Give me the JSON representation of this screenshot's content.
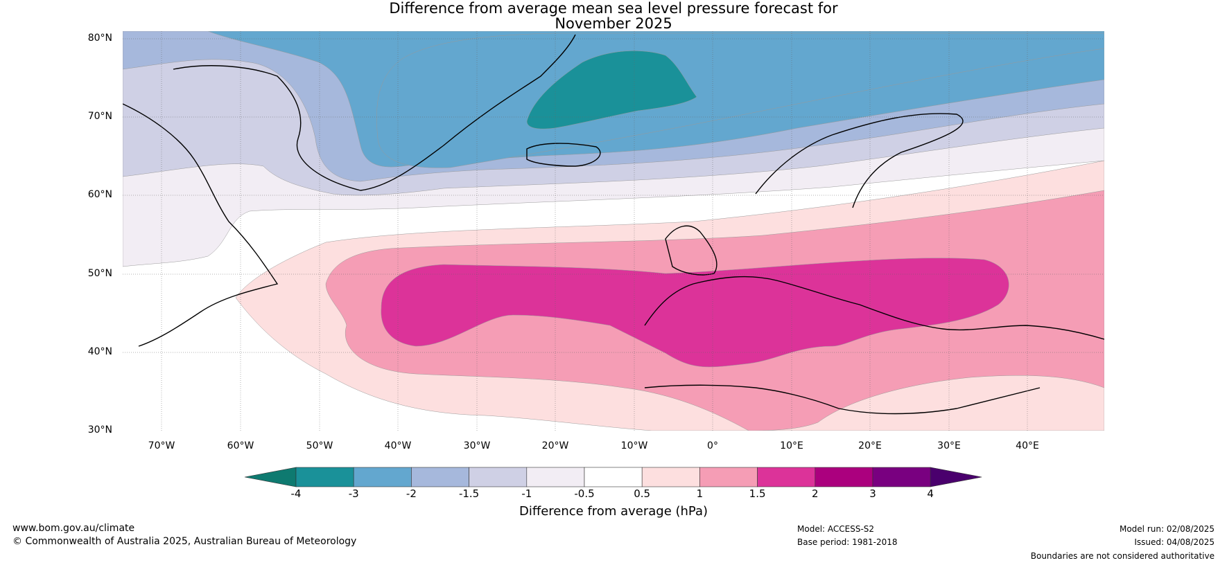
{
  "title": {
    "line1": "Difference from average mean sea level pressure forecast for",
    "line2": "November 2025"
  },
  "axes": {
    "latitude_labels": [
      "80°N",
      "70°N",
      "60°N",
      "50°N",
      "40°N",
      "30°N"
    ],
    "longitude_labels": [
      "70°W",
      "60°W",
      "50°W",
      "40°W",
      "30°W",
      "20°W",
      "10°W",
      "0°",
      "10°E",
      "20°E",
      "30°E",
      "40°E"
    ]
  },
  "colorbar": {
    "label": "Difference from average (hPa)",
    "ticks": [
      "-4",
      "-3",
      "-2",
      "-1.5",
      "-1",
      "-0.5",
      "0.5",
      "1",
      "1.5",
      "2",
      "3",
      "4"
    ],
    "colors": [
      "#0e7a70",
      "#1a9199",
      "#63a7cf",
      "#a6b8dc",
      "#cfd0e5",
      "#f2edf4",
      "#ffffff",
      "#fddfdf",
      "#f59db5",
      "#dc3399",
      "#ab007e",
      "#790080",
      "#4a006d"
    ]
  },
  "map_colors": {
    "gt_1_5": "#dc3399",
    "gt_1": "#f59db5",
    "gt_0_5": "#fddfdf",
    "lt_neg_0_5": "#f2edf4",
    "lt_neg_1": "#cfd0e5",
    "lt_neg_1_5": "#a6b8dc",
    "lt_neg_2": "#63a7cf",
    "lt_neg_3": "#1a9199"
  },
  "footer": {
    "website": "www.bom.gov.au/climate",
    "copyright": "© Commonwealth of Australia 2025, Australian Bureau of Meteorology",
    "model": "Model: ACCESS-S2",
    "base_period": "Base period: 1981-2018",
    "model_run": "Model run: 02/08/2025",
    "issued": "Issued: 04/08/2025",
    "disclaimer": "Boundaries are not considered authoritative"
  }
}
